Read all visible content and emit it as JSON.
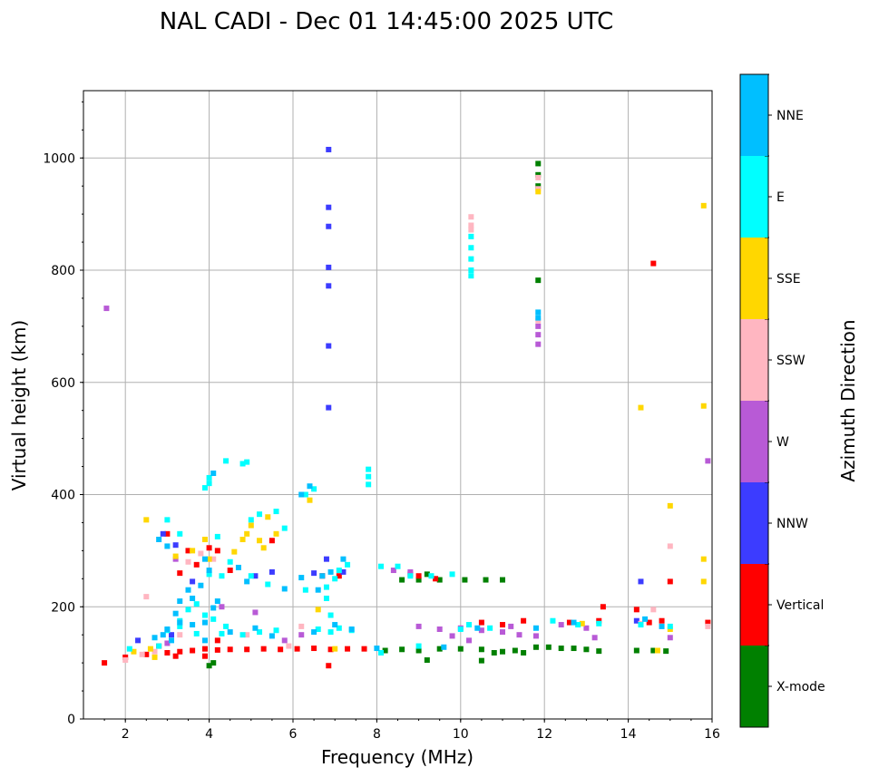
{
  "chart_data": {
    "type": "scatter",
    "title": "NAL CADI - Dec 01 14:45:00 2025 UTC",
    "xlabel": "Frequency (MHz)",
    "ylabel": "Virtual height (km)",
    "xlim": [
      1,
      16
    ],
    "ylim": [
      0,
      1120
    ],
    "xticks": [
      2,
      4,
      6,
      8,
      10,
      12,
      14,
      16
    ],
    "yticks": [
      0,
      200,
      400,
      600,
      800,
      1000
    ],
    "grid": true,
    "colorbar": {
      "label": "Azimuth Direction",
      "categories": [
        {
          "name": "X-mode",
          "color": "#008000"
        },
        {
          "name": "Vertical",
          "color": "#ff0000"
        },
        {
          "name": "NNW",
          "color": "#3c3cff"
        },
        {
          "name": "W",
          "color": "#b85ad6"
        },
        {
          "name": "SSW",
          "color": "#ffb6c1"
        },
        {
          "name": "SSE",
          "color": "#ffd700"
        },
        {
          "name": "E",
          "color": "#00ffff"
        },
        {
          "name": "NNE",
          "color": "#00bfff"
        }
      ]
    },
    "series": [
      {
        "name": "X-mode",
        "points": [
          [
            4.0,
            95
          ],
          [
            4.1,
            100
          ],
          [
            8.2,
            122
          ],
          [
            8.6,
            124
          ],
          [
            9.0,
            122
          ],
          [
            9.5,
            125
          ],
          [
            10.0,
            125
          ],
          [
            10.5,
            124
          ],
          [
            10.8,
            118
          ],
          [
            11.0,
            120
          ],
          [
            11.3,
            122
          ],
          [
            11.5,
            118
          ],
          [
            11.8,
            128
          ],
          [
            12.1,
            128
          ],
          [
            12.4,
            126
          ],
          [
            12.7,
            126
          ],
          [
            13.0,
            124
          ],
          [
            13.3,
            121
          ],
          [
            14.2,
            122
          ],
          [
            14.6,
            122
          ],
          [
            14.9,
            121
          ],
          [
            8.6,
            248
          ],
          [
            9.0,
            248
          ],
          [
            9.5,
            248
          ],
          [
            10.1,
            248
          ],
          [
            10.6,
            248
          ],
          [
            11.0,
            248
          ],
          [
            11.85,
            990
          ],
          [
            11.85,
            970
          ],
          [
            11.85,
            950
          ],
          [
            11.85,
            782
          ],
          [
            9.2,
            258
          ],
          [
            10.5,
            104
          ],
          [
            9.2,
            105
          ]
        ]
      },
      {
        "name": "Vertical",
        "points": [
          [
            1.5,
            100
          ],
          [
            2.0,
            110
          ],
          [
            2.5,
            115
          ],
          [
            3.0,
            118
          ],
          [
            3.3,
            120
          ],
          [
            3.6,
            122
          ],
          [
            3.9,
            125
          ],
          [
            4.2,
            123
          ],
          [
            4.5,
            124
          ],
          [
            4.9,
            124
          ],
          [
            5.3,
            125
          ],
          [
            5.7,
            124
          ],
          [
            6.1,
            125
          ],
          [
            6.5,
            126
          ],
          [
            6.9,
            124
          ],
          [
            7.3,
            125
          ],
          [
            7.7,
            125
          ],
          [
            6.85,
            95
          ],
          [
            8.8,
            258
          ],
          [
            9.0,
            255
          ],
          [
            9.4,
            250
          ],
          [
            10.5,
            172
          ],
          [
            11.0,
            168
          ],
          [
            11.5,
            175
          ],
          [
            12.6,
            172
          ],
          [
            13.3,
            175
          ],
          [
            13.4,
            200
          ],
          [
            14.2,
            195
          ],
          [
            14.5,
            172
          ],
          [
            14.8,
            175
          ],
          [
            15.9,
            172
          ],
          [
            14.6,
            812
          ],
          [
            15.0,
            245
          ],
          [
            4.0,
            305
          ],
          [
            3.5,
            300
          ],
          [
            4.2,
            300
          ],
          [
            3.0,
            330
          ],
          [
            5.5,
            318
          ],
          [
            3.7,
            275
          ],
          [
            3.3,
            260
          ],
          [
            6.7,
            255
          ],
          [
            7.1,
            255
          ],
          [
            4.5,
            265
          ],
          [
            2.8,
            130
          ],
          [
            3.9,
            112
          ],
          [
            4.2,
            140
          ],
          [
            3.2,
            112
          ]
        ]
      },
      {
        "name": "NNW",
        "points": [
          [
            6.85,
            1015
          ],
          [
            6.85,
            912
          ],
          [
            6.85,
            878
          ],
          [
            6.85,
            805
          ],
          [
            6.85,
            772
          ],
          [
            6.85,
            665
          ],
          [
            6.85,
            555
          ],
          [
            6.5,
            260
          ],
          [
            2.9,
            330
          ],
          [
            3.2,
            310
          ],
          [
            5.1,
            255
          ],
          [
            5.5,
            262
          ],
          [
            6.8,
            285
          ],
          [
            2.3,
            140
          ],
          [
            3.1,
            150
          ],
          [
            7.2,
            262
          ],
          [
            14.3,
            245
          ],
          [
            14.2,
            175
          ],
          [
            3.6,
            245
          ]
        ]
      },
      {
        "name": "W",
        "points": [
          [
            1.55,
            732
          ],
          [
            11.85,
            700
          ],
          [
            11.85,
            685
          ],
          [
            11.85,
            668
          ],
          [
            9.0,
            165
          ],
          [
            9.5,
            160
          ],
          [
            10.0,
            162
          ],
          [
            10.5,
            158
          ],
          [
            11.0,
            155
          ],
          [
            11.4,
            150
          ],
          [
            11.8,
            148
          ],
          [
            10.2,
            140
          ],
          [
            9.8,
            148
          ],
          [
            11.2,
            165
          ],
          [
            12.4,
            168
          ],
          [
            13.0,
            162
          ],
          [
            13.2,
            145
          ],
          [
            15.0,
            145
          ],
          [
            15.9,
            460
          ],
          [
            8.4,
            265
          ],
          [
            8.8,
            262
          ],
          [
            3.2,
            285
          ],
          [
            4.3,
            200
          ],
          [
            5.1,
            190
          ],
          [
            6.2,
            150
          ],
          [
            3.0,
            135
          ],
          [
            5.8,
            140
          ]
        ]
      },
      {
        "name": "SSW",
        "points": [
          [
            10.25,
            895
          ],
          [
            10.25,
            880
          ],
          [
            10.25,
            872
          ],
          [
            11.85,
            945
          ],
          [
            11.85,
            965
          ],
          [
            11.85,
            710
          ],
          [
            2.0,
            105
          ],
          [
            2.4,
            115
          ],
          [
            2.7,
            120
          ],
          [
            3.3,
            150
          ],
          [
            3.5,
            280
          ],
          [
            3.8,
            295
          ],
          [
            4.1,
            285
          ],
          [
            6.2,
            165
          ],
          [
            5.9,
            130
          ],
          [
            14.6,
            195
          ],
          [
            15.9,
            165
          ],
          [
            14.3,
            170
          ],
          [
            15.0,
            308
          ],
          [
            4.9,
            150
          ],
          [
            2.5,
            218
          ]
        ]
      },
      {
        "name": "SSE",
        "points": [
          [
            11.85,
            940
          ],
          [
            15.8,
            915
          ],
          [
            15.8,
            558
          ],
          [
            14.3,
            555
          ],
          [
            15.0,
            380
          ],
          [
            15.8,
            285
          ],
          [
            15.8,
            245
          ],
          [
            6.4,
            390
          ],
          [
            4.9,
            330
          ],
          [
            5.2,
            318
          ],
          [
            4.8,
            320
          ],
          [
            5.0,
            345
          ],
          [
            5.4,
            360
          ],
          [
            5.3,
            305
          ],
          [
            4.6,
            298
          ],
          [
            3.2,
            290
          ],
          [
            3.6,
            300
          ],
          [
            3.9,
            320
          ],
          [
            4.0,
            285
          ],
          [
            2.5,
            355
          ],
          [
            6.6,
            195
          ],
          [
            2.2,
            120
          ],
          [
            2.6,
            125
          ],
          [
            14.7,
            122
          ],
          [
            12.9,
            170
          ],
          [
            15.0,
            160
          ],
          [
            7.0,
            125
          ],
          [
            5.6,
            330
          ],
          [
            2.7,
            110
          ]
        ]
      },
      {
        "name": "E",
        "points": [
          [
            10.25,
            860
          ],
          [
            10.25,
            840
          ],
          [
            10.25,
            820
          ],
          [
            10.25,
            800
          ],
          [
            10.25,
            790
          ],
          [
            7.8,
            445
          ],
          [
            7.8,
            432
          ],
          [
            7.8,
            418
          ],
          [
            6.5,
            410
          ],
          [
            6.3,
            400
          ],
          [
            4.0,
            430
          ],
          [
            4.0,
            420
          ],
          [
            3.9,
            412
          ],
          [
            4.4,
            460
          ],
          [
            4.9,
            458
          ],
          [
            4.8,
            455
          ],
          [
            3.0,
            355
          ],
          [
            3.3,
            330
          ],
          [
            4.2,
            325
          ],
          [
            5.0,
            355
          ],
          [
            5.2,
            365
          ],
          [
            5.6,
            370
          ],
          [
            5.8,
            340
          ],
          [
            4.5,
            280
          ],
          [
            4.0,
            258
          ],
          [
            4.3,
            255
          ],
          [
            5.4,
            240
          ],
          [
            5.0,
            255
          ],
          [
            6.3,
            230
          ],
          [
            6.8,
            235
          ],
          [
            7.1,
            265
          ],
          [
            7.3,
            275
          ],
          [
            8.1,
            272
          ],
          [
            8.5,
            272
          ],
          [
            8.8,
            255
          ],
          [
            9.3,
            255
          ],
          [
            9.8,
            258
          ],
          [
            6.6,
            160
          ],
          [
            6.9,
            155
          ],
          [
            7.1,
            162
          ],
          [
            7.4,
            158
          ],
          [
            5.2,
            155
          ],
          [
            5.6,
            158
          ],
          [
            4.8,
            150
          ],
          [
            4.3,
            152
          ],
          [
            3.7,
            152
          ],
          [
            3.3,
            165
          ],
          [
            3.0,
            158
          ],
          [
            2.8,
            130
          ],
          [
            8.1,
            118
          ],
          [
            9.0,
            130
          ],
          [
            10.0,
            160
          ],
          [
            10.2,
            168
          ],
          [
            10.7,
            162
          ],
          [
            12.2,
            175
          ],
          [
            12.8,
            168
          ],
          [
            13.3,
            170
          ],
          [
            14.3,
            168
          ],
          [
            15.0,
            165
          ],
          [
            3.7,
            205
          ],
          [
            3.9,
            185
          ],
          [
            3.3,
            175
          ],
          [
            3.5,
            195
          ],
          [
            4.1,
            178
          ],
          [
            4.4,
            165
          ],
          [
            6.8,
            215
          ],
          [
            6.9,
            185
          ],
          [
            7.0,
            250
          ],
          [
            2.1,
            125
          ]
        ]
      },
      {
        "name": "NNE",
        "points": [
          [
            11.85,
            725
          ],
          [
            11.85,
            715
          ],
          [
            6.6,
            230
          ],
          [
            6.7,
            255
          ],
          [
            6.9,
            262
          ],
          [
            7.2,
            285
          ],
          [
            6.2,
            252
          ],
          [
            5.8,
            232
          ],
          [
            4.7,
            270
          ],
          [
            4.9,
            245
          ],
          [
            3.9,
            285
          ],
          [
            4.0,
            265
          ],
          [
            3.8,
            238
          ],
          [
            3.5,
            230
          ],
          [
            3.3,
            210
          ],
          [
            3.2,
            188
          ],
          [
            3.3,
            172
          ],
          [
            3.6,
            168
          ],
          [
            3.9,
            172
          ],
          [
            4.2,
            210
          ],
          [
            4.1,
            198
          ],
          [
            3.6,
            215
          ],
          [
            3.0,
            160
          ],
          [
            2.9,
            150
          ],
          [
            2.7,
            145
          ],
          [
            3.1,
            140
          ],
          [
            3.9,
            140
          ],
          [
            4.5,
            155
          ],
          [
            5.1,
            162
          ],
          [
            5.5,
            148
          ],
          [
            6.5,
            155
          ],
          [
            7.0,
            168
          ],
          [
            7.4,
            160
          ],
          [
            8.0,
            126
          ],
          [
            9.6,
            128
          ],
          [
            10.4,
            162
          ],
          [
            11.8,
            162
          ],
          [
            12.7,
            172
          ],
          [
            14.4,
            178
          ],
          [
            14.8,
            165
          ],
          [
            6.4,
            415
          ],
          [
            6.2,
            400
          ],
          [
            4.1,
            438
          ],
          [
            2.8,
            320
          ],
          [
            3.0,
            308
          ]
        ]
      }
    ]
  }
}
